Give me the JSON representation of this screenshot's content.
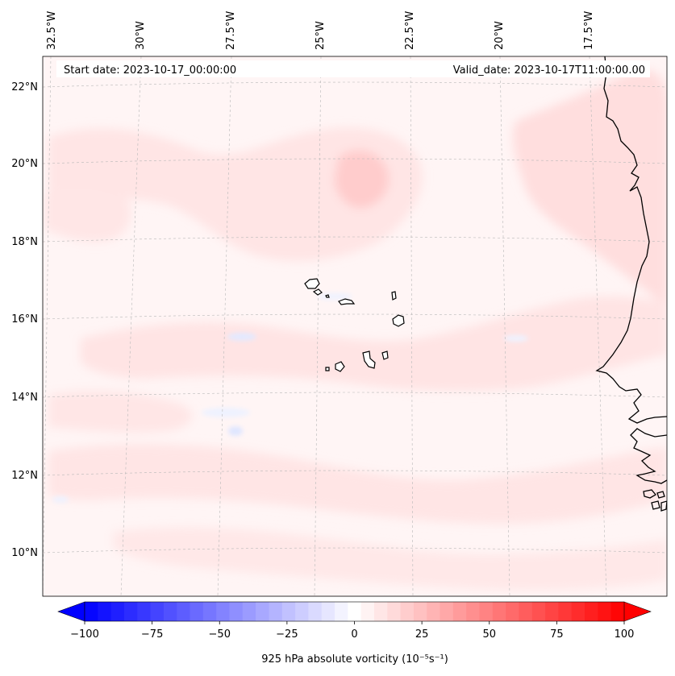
{
  "header": {
    "start_label": "Start date: 2023-10-17_00:00:00",
    "valid_label": "Valid_date: 2023-10-17T11:00:00.00"
  },
  "map": {
    "projection_note": "Lambert conformal",
    "lon_labels": [
      "32.5°W",
      "30°W",
      "27.5°W",
      "25°W",
      "22.5°W",
      "20°W",
      "17.5°W"
    ],
    "lat_labels": [
      "22°N",
      "20°N",
      "18°N",
      "16°N",
      "14°N",
      "12°N",
      "10°N"
    ],
    "field_colors": {
      "background": "#fff5f5",
      "weak_positive": "#ffe6e6",
      "moderate_positive": "#ffd4d4",
      "weak_negative": "#eef2ff",
      "gridline": "#b0b0b0",
      "coast": "#000000"
    }
  },
  "colorbar": {
    "ticks": [
      "−100",
      "−75",
      "−50",
      "−25",
      "0",
      "25",
      "50",
      "75",
      "100"
    ],
    "label": "925 hPa absolute vorticity (10⁻⁵s⁻¹)",
    "min": -100,
    "max": 100,
    "low_color": "#0000ff",
    "mid_color": "#ffffff",
    "high_color": "#ff0000",
    "n_levels": 41
  }
}
